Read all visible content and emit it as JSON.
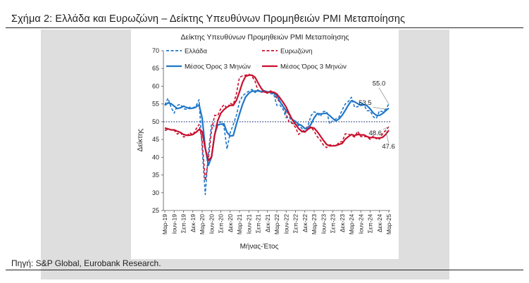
{
  "figure": {
    "title": "Σχήμα 2: Ελλάδα και Ευρωζώνη – Δείκτης Υπευθύνων Προμηθειών PMI Μεταποίησης",
    "source": "Πηγή: S&P Global, Eurobank Research."
  },
  "chart_data": {
    "type": "line",
    "title": "Δείκτης Υπευθύνων Προμηθειών PMI Μεταποίησης",
    "xlabel": "Μήνας-Έτος",
    "ylabel": "Δείκτης",
    "ylim": [
      25,
      70
    ],
    "yticks": [
      25,
      30,
      35,
      40,
      45,
      50,
      55,
      60,
      65,
      70
    ],
    "reference_line": 50,
    "grid": false,
    "legend_position": "top",
    "x": [
      "Mar-19",
      "Apr-19",
      "May-19",
      "Jun-19",
      "Jul-19",
      "Aug-19",
      "Sep-19",
      "Oct-19",
      "Nov-19",
      "Dec-19",
      "Jan-20",
      "Feb-20",
      "Mar-20",
      "Apr-20",
      "May-20",
      "Jun-20",
      "Jul-20",
      "Aug-20",
      "Sep-20",
      "Oct-20",
      "Nov-20",
      "Dec-20",
      "Jan-21",
      "Feb-21",
      "Mar-21",
      "Apr-21",
      "May-21",
      "Jun-21",
      "Jul-21",
      "Aug-21",
      "Sep-21",
      "Oct-21",
      "Nov-21",
      "Dec-21",
      "Jan-22",
      "Feb-22",
      "Mar-22",
      "Apr-22",
      "May-22",
      "Jun-22",
      "Jul-22",
      "Aug-22",
      "Sep-22",
      "Oct-22",
      "Nov-22",
      "Dec-22",
      "Jan-23",
      "Feb-23",
      "Mar-23",
      "Apr-23",
      "May-23",
      "Jun-23",
      "Jul-23",
      "Aug-23",
      "Sep-23",
      "Oct-23",
      "Nov-23",
      "Dec-23",
      "Jan-24",
      "Feb-24",
      "Mar-24",
      "Apr-24",
      "May-24",
      "Jun-24",
      "Jul-24",
      "Aug-24",
      "Sep-24",
      "Oct-24",
      "Nov-24",
      "Dec-24",
      "Jan-25",
      "Feb-25",
      "Mar-25"
    ],
    "xtick_labels": [
      "Μαρ-19",
      "Ιουν-19",
      "Σεπ-19",
      "Δεκ-19",
      "Μαρ-20",
      "Ιουν-20",
      "Σεπ-20",
      "Δεκ-20",
      "Μαρ-21",
      "Ιουν-21",
      "Σεπ-21",
      "Δεκ-21",
      "Μαρ-22",
      "Ιουν-22",
      "Σεπ-22",
      "Δεκ-22",
      "Μαρ-23",
      "Ιουν-23",
      "Σεπ-23",
      "Δεκ-23",
      "Μαρ-24",
      "Ιουν-24",
      "Σεπ-24",
      "Δεκ-24",
      "Μαρ-25"
    ],
    "series": [
      {
        "name": "Ελλάδα",
        "color": "#1f77c8",
        "style": "dashed",
        "values": [
          54.7,
          56.6,
          54.1,
          52.4,
          54.6,
          54.9,
          53.6,
          53.5,
          54.1,
          53.9,
          54.4,
          56.2,
          42.5,
          29.5,
          41.1,
          49.4,
          48.6,
          49.4,
          50.0,
          48.7,
          42.3,
          46.9,
          49.2,
          51.8,
          55.6,
          57.3,
          58.0,
          58.6,
          59.1,
          58.2,
          58.9,
          58.4,
          58.7,
          58.2,
          57.9,
          57.8,
          54.6,
          54.7,
          53.5,
          51.1,
          51.4,
          49.2,
          49.7,
          48.9,
          48.2,
          47.2,
          48.9,
          51.7,
          52.8,
          52.4,
          51.5,
          52.9,
          52.9,
          49.4,
          50.3,
          50.8,
          51.3,
          53.3,
          55.0,
          55.7,
          56.9,
          54.1,
          54.2,
          55.6,
          54.7,
          53.1,
          53.1,
          51.4,
          50.9,
          53.1,
          52.8,
          53.5,
          55.0
        ]
      },
      {
        "name": "Ευρωζώνη",
        "color": "#c8102e",
        "style": "dashed",
        "values": [
          47.5,
          47.9,
          47.7,
          47.6,
          46.5,
          47.0,
          45.7,
          45.9,
          46.9,
          46.3,
          47.9,
          49.2,
          44.5,
          33.4,
          39.4,
          47.4,
          51.8,
          51.7,
          53.7,
          54.8,
          53.8,
          55.2,
          54.8,
          57.9,
          62.5,
          62.9,
          63.1,
          63.4,
          62.8,
          61.4,
          58.6,
          58.3,
          58.4,
          58.0,
          58.7,
          58.2,
          56.5,
          55.5,
          54.6,
          52.1,
          49.8,
          49.6,
          48.4,
          46.4,
          47.1,
          47.8,
          48.8,
          48.5,
          47.3,
          45.8,
          44.8,
          43.4,
          42.7,
          43.5,
          43.4,
          43.1,
          44.2,
          44.4,
          46.6,
          46.5,
          46.1,
          45.7,
          47.3,
          45.8,
          45.8,
          45.8,
          45.0,
          46.0,
          45.2,
          45.1,
          46.6,
          47.6,
          48.6
        ]
      },
      {
        "name": "Μέσος Όρος 3 Μηνών",
        "color": "#1f77c8",
        "style": "solid",
        "group": "Ελλάδα",
        "values": [
          54.6,
          55.3,
          55.1,
          54.4,
          53.7,
          53.9,
          54.4,
          54.0,
          53.7,
          53.8,
          54.1,
          54.8,
          51.0,
          42.7,
          37.7,
          40.0,
          46.4,
          49.1,
          49.3,
          49.4,
          47.0,
          46.0,
          46.1,
          49.3,
          52.2,
          54.9,
          57.0,
          58.0,
          58.6,
          58.6,
          58.7,
          58.5,
          58.7,
          58.4,
          58.3,
          58.0,
          57.4,
          55.7,
          54.3,
          53.1,
          52.0,
          50.6,
          50.1,
          49.3,
          48.9,
          48.1,
          48.1,
          49.3,
          51.1,
          52.3,
          52.2,
          52.3,
          52.4,
          51.7,
          50.9,
          50.2,
          50.8,
          51.8,
          53.2,
          54.7,
          55.9,
          55.6,
          55.1,
          54.6,
          54.8,
          54.5,
          53.6,
          52.5,
          51.8,
          51.8,
          52.3,
          53.1,
          53.8
        ]
      },
      {
        "name": "Μέσος Όρος 3 Μηνών",
        "color": "#c8102e",
        "style": "solid",
        "group": "Ευρωζώνη",
        "values": [
          48.2,
          48.0,
          47.7,
          47.7,
          47.3,
          47.0,
          46.4,
          46.2,
          46.2,
          46.4,
          47.0,
          47.8,
          47.2,
          42.4,
          39.1,
          40.1,
          46.2,
          50.3,
          52.4,
          53.4,
          54.1,
          54.6,
          54.6,
          56.0,
          58.4,
          61.1,
          62.8,
          63.1,
          63.1,
          62.5,
          60.9,
          59.4,
          58.4,
          58.2,
          58.4,
          58.3,
          57.8,
          56.7,
          55.5,
          54.1,
          52.2,
          50.5,
          49.3,
          48.1,
          47.3,
          47.1,
          47.9,
          48.4,
          48.2,
          47.2,
          46.0,
          44.7,
          43.6,
          43.2,
          43.2,
          43.3,
          43.6,
          43.9,
          45.1,
          45.8,
          46.4,
          46.1,
          46.4,
          46.3,
          46.3,
          45.8,
          45.5,
          45.6,
          45.4,
          45.4,
          45.6,
          46.4,
          47.6
        ]
      }
    ],
    "annotations": [
      {
        "text": "55.0",
        "x": "Mar-25",
        "y": 55.0
      },
      {
        "text": "53.5",
        "x": "Feb-25",
        "y": 53.5
      },
      {
        "text": "48.6",
        "x": "Mar-25",
        "y": 48.6
      },
      {
        "text": "47.6",
        "x": "Feb-25",
        "y": 47.6
      }
    ]
  }
}
